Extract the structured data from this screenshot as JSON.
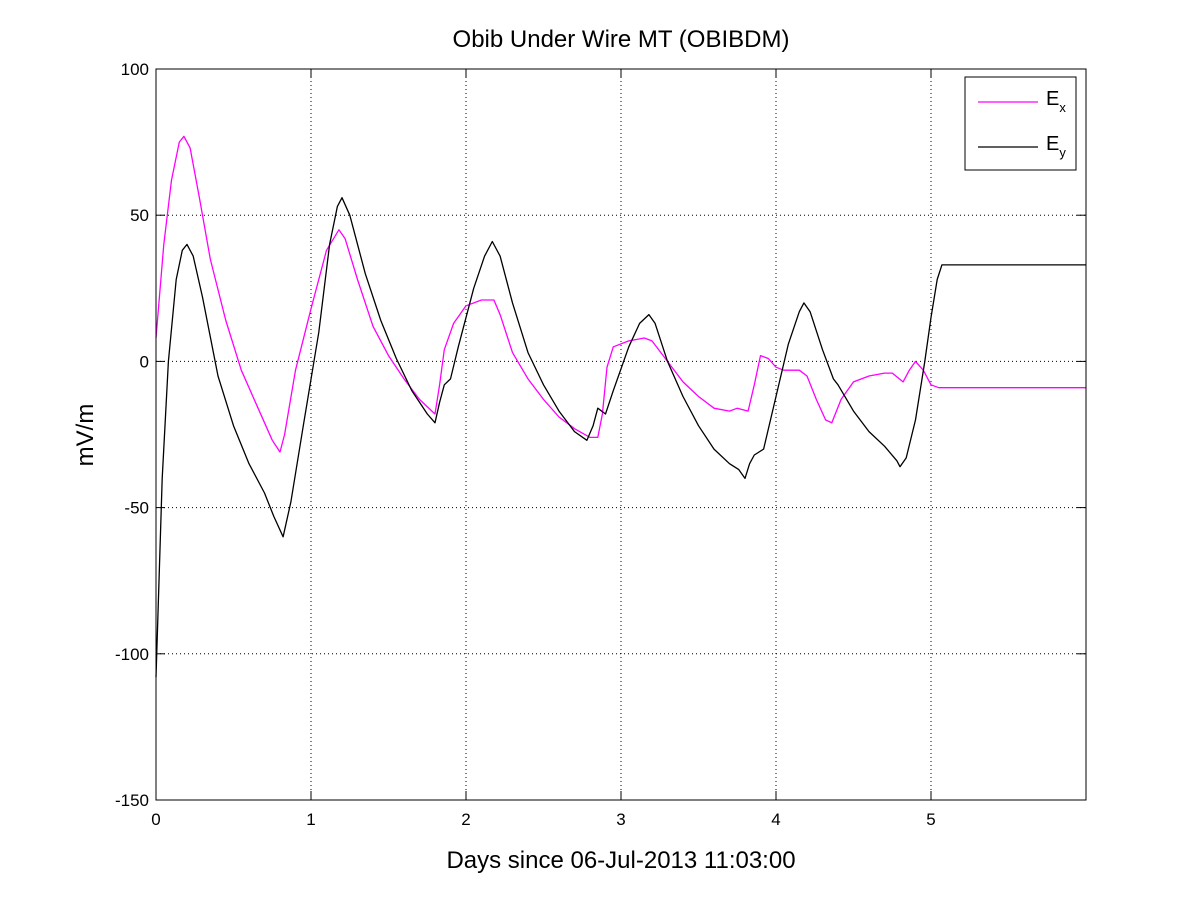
{
  "chart_data": {
    "type": "line",
    "title": "Obib Under Wire MT (OBIBDM)",
    "xlabel": "Days since 06-Jul-2013 11:03:00",
    "ylabel": "mV/m",
    "xlim": [
      0,
      6
    ],
    "ylim": [
      -150,
      100
    ],
    "xticks": [
      0,
      1,
      2,
      3,
      4,
      5
    ],
    "xtick_labels": [
      "0",
      "1",
      "2",
      "3",
      "4",
      "5"
    ],
    "yticks": [
      -150,
      -100,
      -50,
      0,
      50,
      100
    ],
    "ytick_labels": [
      "-150",
      "-100",
      "-50",
      "0",
      "50",
      "100"
    ],
    "grid": true,
    "legend_position": "top-right",
    "series": [
      {
        "name": "E",
        "subscript": "x",
        "color": "#ff00ff",
        "points": [
          [
            0,
            8
          ],
          [
            0.05,
            40
          ],
          [
            0.1,
            62
          ],
          [
            0.15,
            75
          ],
          [
            0.18,
            77
          ],
          [
            0.22,
            73
          ],
          [
            0.28,
            56
          ],
          [
            0.35,
            35
          ],
          [
            0.45,
            14
          ],
          [
            0.55,
            -3
          ],
          [
            0.65,
            -15
          ],
          [
            0.75,
            -27
          ],
          [
            0.8,
            -31
          ],
          [
            0.83,
            -25
          ],
          [
            0.9,
            -3
          ],
          [
            1.0,
            18
          ],
          [
            1.1,
            38
          ],
          [
            1.18,
            45
          ],
          [
            1.22,
            42
          ],
          [
            1.3,
            28
          ],
          [
            1.4,
            12
          ],
          [
            1.5,
            2
          ],
          [
            1.6,
            -6
          ],
          [
            1.7,
            -13
          ],
          [
            1.78,
            -17
          ],
          [
            1.8,
            -18
          ],
          [
            1.83,
            -8
          ],
          [
            1.86,
            4
          ],
          [
            1.92,
            13
          ],
          [
            2.0,
            19
          ],
          [
            2.1,
            21
          ],
          [
            2.18,
            21
          ],
          [
            2.22,
            16
          ],
          [
            2.3,
            3
          ],
          [
            2.4,
            -6
          ],
          [
            2.5,
            -13
          ],
          [
            2.6,
            -19
          ],
          [
            2.7,
            -23
          ],
          [
            2.8,
            -26
          ],
          [
            2.85,
            -26
          ],
          [
            2.88,
            -18
          ],
          [
            2.91,
            -2
          ],
          [
            2.95,
            5
          ],
          [
            3.05,
            7
          ],
          [
            3.15,
            8
          ],
          [
            3.2,
            7
          ],
          [
            3.3,
            0
          ],
          [
            3.4,
            -7
          ],
          [
            3.5,
            -12
          ],
          [
            3.6,
            -16
          ],
          [
            3.7,
            -17
          ],
          [
            3.75,
            -16
          ],
          [
            3.82,
            -17
          ],
          [
            3.86,
            -8
          ],
          [
            3.9,
            2
          ],
          [
            3.95,
            1
          ],
          [
            4.0,
            -2
          ],
          [
            4.05,
            -3
          ],
          [
            4.15,
            -3
          ],
          [
            4.2,
            -5
          ],
          [
            4.26,
            -13
          ],
          [
            4.32,
            -20
          ],
          [
            4.36,
            -21
          ],
          [
            4.42,
            -13
          ],
          [
            4.5,
            -7
          ],
          [
            4.6,
            -5
          ],
          [
            4.7,
            -4
          ],
          [
            4.75,
            -4
          ],
          [
            4.82,
            -7
          ],
          [
            4.86,
            -3
          ],
          [
            4.9,
            0
          ],
          [
            4.95,
            -3
          ],
          [
            5.0,
            -8
          ],
          [
            5.05,
            -9
          ],
          [
            5.5,
            -9
          ],
          [
            6.0,
            -9
          ]
        ]
      },
      {
        "name": "E",
        "subscript": "y",
        "color": "#000000",
        "points": [
          [
            0,
            -108
          ],
          [
            0.04,
            -40
          ],
          [
            0.08,
            0
          ],
          [
            0.13,
            28
          ],
          [
            0.17,
            38
          ],
          [
            0.2,
            40
          ],
          [
            0.24,
            36
          ],
          [
            0.3,
            22
          ],
          [
            0.4,
            -5
          ],
          [
            0.5,
            -22
          ],
          [
            0.6,
            -35
          ],
          [
            0.7,
            -45
          ],
          [
            0.76,
            -53
          ],
          [
            0.82,
            -60
          ],
          [
            0.87,
            -48
          ],
          [
            0.95,
            -22
          ],
          [
            1.05,
            10
          ],
          [
            1.12,
            40
          ],
          [
            1.17,
            53
          ],
          [
            1.2,
            56
          ],
          [
            1.25,
            50
          ],
          [
            1.35,
            30
          ],
          [
            1.45,
            14
          ],
          [
            1.55,
            1
          ],
          [
            1.65,
            -10
          ],
          [
            1.75,
            -18
          ],
          [
            1.8,
            -21
          ],
          [
            1.83,
            -14
          ],
          [
            1.86,
            -8
          ],
          [
            1.9,
            -6
          ],
          [
            1.95,
            5
          ],
          [
            2.05,
            25
          ],
          [
            2.12,
            36
          ],
          [
            2.17,
            41
          ],
          [
            2.22,
            36
          ],
          [
            2.3,
            20
          ],
          [
            2.4,
            3
          ],
          [
            2.5,
            -8
          ],
          [
            2.6,
            -17
          ],
          [
            2.7,
            -24
          ],
          [
            2.78,
            -27
          ],
          [
            2.82,
            -22
          ],
          [
            2.85,
            -16
          ],
          [
            2.9,
            -18
          ],
          [
            2.95,
            -10
          ],
          [
            3.05,
            5
          ],
          [
            3.12,
            13
          ],
          [
            3.18,
            16
          ],
          [
            3.22,
            13
          ],
          [
            3.3,
            0
          ],
          [
            3.4,
            -12
          ],
          [
            3.5,
            -22
          ],
          [
            3.6,
            -30
          ],
          [
            3.7,
            -35
          ],
          [
            3.76,
            -37
          ],
          [
            3.8,
            -40
          ],
          [
            3.83,
            -35
          ],
          [
            3.86,
            -32
          ],
          [
            3.92,
            -30
          ],
          [
            4.0,
            -12
          ],
          [
            4.08,
            6
          ],
          [
            4.15,
            17
          ],
          [
            4.18,
            20
          ],
          [
            4.22,
            17
          ],
          [
            4.3,
            4
          ],
          [
            4.37,
            -6
          ],
          [
            4.4,
            -8
          ],
          [
            4.5,
            -17
          ],
          [
            4.6,
            -24
          ],
          [
            4.7,
            -29
          ],
          [
            4.78,
            -34
          ],
          [
            4.8,
            -36
          ],
          [
            4.84,
            -33
          ],
          [
            4.9,
            -20
          ],
          [
            4.96,
            0
          ],
          [
            5.0,
            15
          ],
          [
            5.04,
            28
          ],
          [
            5.07,
            33
          ],
          [
            5.5,
            33
          ],
          [
            6.0,
            33
          ]
        ]
      }
    ]
  }
}
